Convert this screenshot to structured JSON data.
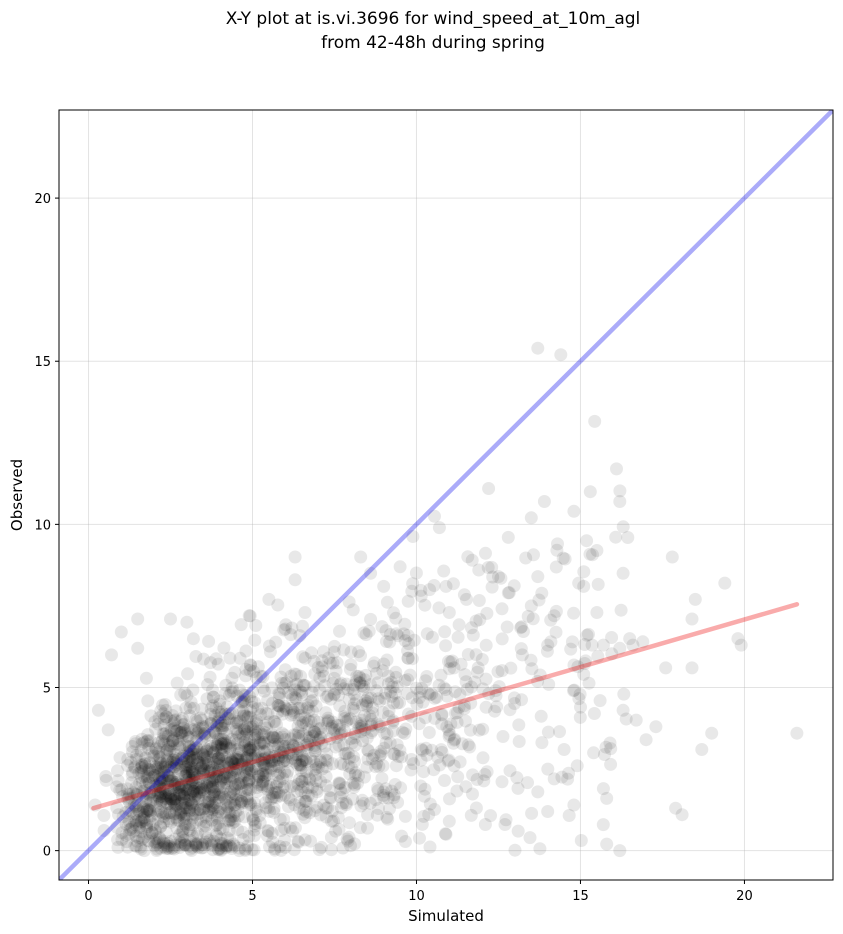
{
  "chart_data": {
    "type": "scatter",
    "title": "X-Y plot at is.vi.3696 for wind_speed_at_10m_agl",
    "subtitle": "from 42-48h during spring",
    "xlabel": "Simulated",
    "ylabel": "Observed",
    "xlim": [
      -0.9,
      22.7
    ],
    "ylim": [
      -0.9,
      22.7
    ],
    "xticks": [
      0,
      5,
      10,
      15,
      20
    ],
    "yticks": [
      0,
      5,
      10,
      15,
      20
    ],
    "grid": true,
    "point_color": "#000000",
    "point_alpha": 0.09,
    "point_count": 2100,
    "series": [],
    "reference_lines": [
      {
        "kind": "identity",
        "color": "#0000ee",
        "alpha": 0.33,
        "x": [
          -0.9,
          22.7
        ],
        "y": [
          -0.9,
          22.7
        ]
      },
      {
        "kind": "regression",
        "color": "#ee0000",
        "alpha": 0.33,
        "x": [
          0.15,
          21.6
        ],
        "y": [
          1.3,
          7.55
        ]
      }
    ],
    "points": [
      [
        13.7,
        15.4
      ],
      [
        14.4,
        15.2
      ],
      [
        16.1,
        11.7
      ],
      [
        12.2,
        11.1
      ],
      [
        16.2,
        10.7
      ],
      [
        13.9,
        10.7
      ],
      [
        15.3,
        11.0
      ],
      [
        14.8,
        10.4
      ],
      [
        13.5,
        10.2
      ],
      [
        14.3,
        9.4
      ],
      [
        15.5,
        9.2
      ],
      [
        10.7,
        9.9
      ],
      [
        16.3,
        8.5
      ],
      [
        17.8,
        9.0
      ],
      [
        8.3,
        9.0
      ],
      [
        6.3,
        9.0
      ],
      [
        12.8,
        9.6
      ],
      [
        13.7,
        8.4
      ],
      [
        15.1,
        8.1
      ],
      [
        19.4,
        8.2
      ],
      [
        18.5,
        7.7
      ],
      [
        18.4,
        7.1
      ],
      [
        21.6,
        3.6
      ],
      [
        19.8,
        6.5
      ],
      [
        19.9,
        6.3
      ],
      [
        19.0,
        3.6
      ],
      [
        18.7,
        3.1
      ],
      [
        17.9,
        1.3
      ],
      [
        18.1,
        1.1
      ],
      [
        16.2,
        0.0
      ],
      [
        15.8,
        0.2
      ],
      [
        17.3,
        3.8
      ],
      [
        17.0,
        3.4
      ],
      [
        16.7,
        4.0
      ],
      [
        16.3,
        4.3
      ],
      [
        16.5,
        6.5
      ],
      [
        15.7,
        6.3
      ],
      [
        15.2,
        6.6
      ],
      [
        7.1,
        0.1
      ],
      [
        6.0,
        0.1
      ],
      [
        4.6,
        0.0
      ],
      [
        1.7,
        0.0
      ],
      [
        0.9,
        0.1
      ],
      [
        2.5,
        7.1
      ],
      [
        1.5,
        7.1
      ],
      [
        3.0,
        7.0
      ],
      [
        1.0,
        6.7
      ],
      [
        0.7,
        6.0
      ],
      [
        1.5,
        6.2
      ],
      [
        4.9,
        7.2
      ],
      [
        6.6,
        7.3
      ],
      [
        5.5,
        7.7
      ],
      [
        6.3,
        8.3
      ],
      [
        5.1,
        6.9
      ],
      [
        15.8,
        1.6
      ],
      [
        15.7,
        1.9
      ],
      [
        14.8,
        1.4
      ],
      [
        14.0,
        1.2
      ],
      [
        13.1,
        0.6
      ],
      [
        12.7,
        0.8
      ],
      [
        11.0,
        0.9
      ],
      [
        10.9,
        0.5
      ],
      [
        12.1,
        0.8
      ],
      [
        0.3,
        4.3
      ],
      [
        0.2,
        1.4
      ],
      [
        0.6,
        3.7
      ],
      [
        18.4,
        5.6
      ],
      [
        17.6,
        5.6
      ],
      [
        16.9,
        6.4
      ],
      [
        16.2,
        6.2
      ],
      [
        9.5,
        8.7
      ],
      [
        9.0,
        8.1
      ],
      [
        8.6,
        8.5
      ],
      [
        11.7,
        8.9
      ],
      [
        11.9,
        8.6
      ],
      [
        12.5,
        8.4
      ],
      [
        10.9,
        8.1
      ],
      [
        10.4,
        8.0
      ],
      [
        11.0,
        7.3
      ],
      [
        12.8,
        7.9
      ],
      [
        13.5,
        7.5
      ],
      [
        14.2,
        7.2
      ],
      [
        14.0,
        6.3
      ],
      [
        15.5,
        7.3
      ],
      [
        16.6,
        6.3
      ],
      [
        15.1,
        5.4
      ],
      [
        15.0,
        4.4
      ],
      [
        15.6,
        4.6
      ],
      [
        15.9,
        3.3
      ],
      [
        15.4,
        3.0
      ],
      [
        14.5,
        3.1
      ],
      [
        14.9,
        2.6
      ],
      [
        14.2,
        2.2
      ],
      [
        13.7,
        1.8
      ]
    ]
  }
}
